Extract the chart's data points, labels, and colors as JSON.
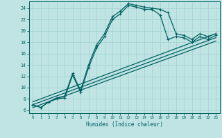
{
  "xlabel": "Humidex (Indice chaleur)",
  "bg_color": "#c0e4e4",
  "line_color": "#006060",
  "grid_color": "#a8d4d4",
  "xlim": [
    -0.5,
    23.5
  ],
  "ylim": [
    5.5,
    25.2
  ],
  "xticks": [
    0,
    1,
    2,
    3,
    4,
    5,
    6,
    7,
    8,
    9,
    10,
    11,
    12,
    13,
    14,
    15,
    16,
    17,
    18,
    19,
    20,
    21,
    22,
    23
  ],
  "yticks": [
    6,
    8,
    10,
    12,
    14,
    16,
    18,
    20,
    22,
    24
  ],
  "line1_x": [
    0,
    1,
    2,
    3,
    4,
    5,
    6,
    7,
    8,
    9,
    10,
    11,
    12,
    13,
    14,
    15,
    16,
    17,
    18,
    19,
    20,
    21,
    22,
    23
  ],
  "line1_y": [
    7.0,
    6.5,
    7.5,
    8.2,
    8.5,
    12.5,
    9.5,
    14.0,
    17.5,
    19.5,
    22.5,
    23.5,
    24.8,
    24.5,
    24.2,
    24.0,
    23.8,
    23.2,
    19.5,
    19.2,
    18.5,
    19.5,
    19.0,
    19.5
  ],
  "line2_x": [
    0,
    1,
    2,
    3,
    4,
    5,
    6,
    7,
    8,
    9,
    10,
    11,
    12,
    13,
    14,
    15,
    16,
    17,
    18,
    19,
    20,
    21,
    22,
    23
  ],
  "line2_y": [
    7.0,
    6.5,
    7.5,
    8.0,
    8.2,
    12.2,
    9.2,
    13.5,
    17.0,
    19.0,
    22.0,
    23.0,
    24.5,
    24.2,
    23.8,
    23.8,
    22.8,
    18.5,
    19.0,
    18.8,
    18.0,
    19.0,
    18.5,
    19.2
  ],
  "line3_x": [
    0,
    23
  ],
  "line3_y": [
    7.5,
    19.5
  ],
  "line4_x": [
    0,
    23
  ],
  "line4_y": [
    7.0,
    18.8
  ],
  "line5_x": [
    0,
    23
  ],
  "line5_y": [
    6.5,
    18.2
  ]
}
